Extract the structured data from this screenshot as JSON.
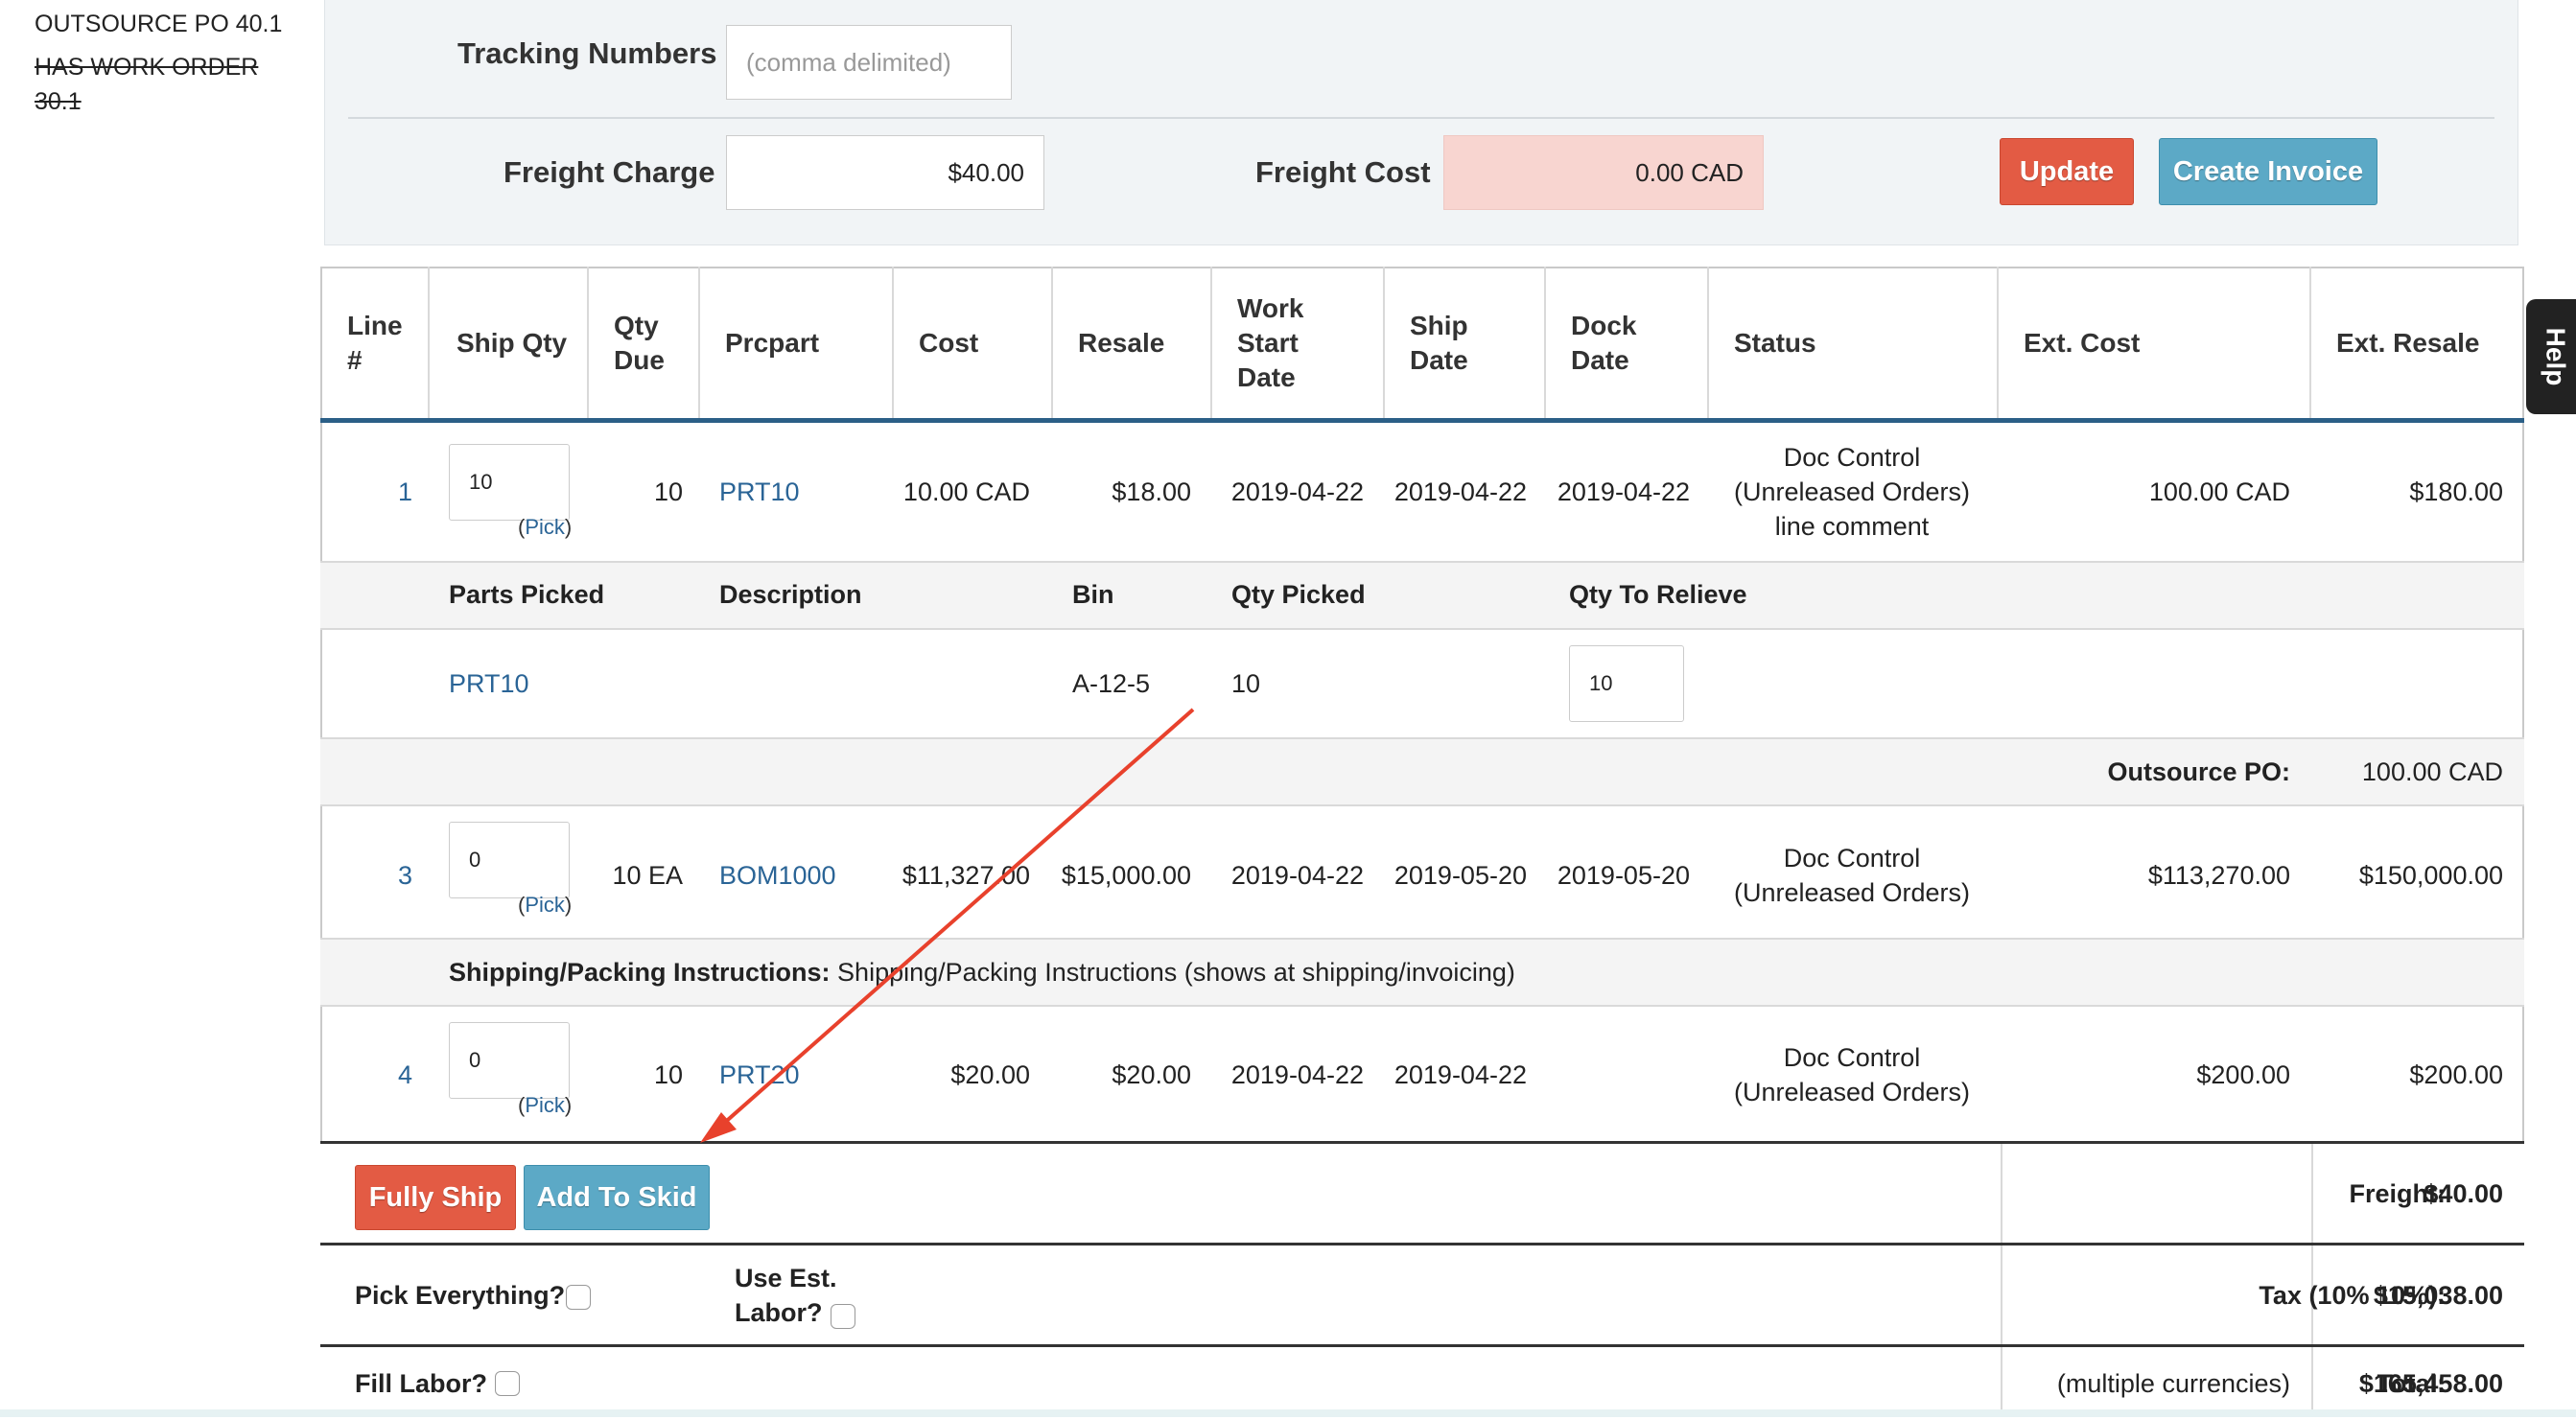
{
  "sidebar": {
    "po_label": "OUTSOURCE PO 40.1",
    "work_order_label": "HAS WORK ORDER 30.1"
  },
  "top_panel": {
    "tracking_label": "Tracking Numbers",
    "tracking_placeholder": "(comma delimited)",
    "freight_charge_label": "Freight Charge",
    "freight_charge_value": "$40.00",
    "freight_cost_label": "Freight Cost",
    "freight_cost_value": "0.00 CAD",
    "update_label": "Update",
    "create_invoice_label": "Create Invoice"
  },
  "help_label": "Help",
  "columns": {
    "line": "Line #",
    "ship_qty": "Ship Qty",
    "qty_due": "Qty Due",
    "prcpart": "Prcpart",
    "cost": "Cost",
    "resale": "Resale",
    "work_start": "Work Start Date",
    "ship_date": "Ship Date",
    "dock_date": "Dock Date",
    "status": "Status",
    "ext_cost": "Ext. Cost",
    "ext_resale": "Ext. Resale"
  },
  "pick_label": "Pick",
  "rows": [
    {
      "line": "1",
      "ship_qty": "10",
      "qty_due": "10",
      "prcpart": "PRT10",
      "cost": "10.00 CAD",
      "resale": "$18.00",
      "work_start": "2019-04-22",
      "ship_date": "2019-04-22",
      "dock_date": "2019-04-22",
      "status_1": "Doc Control",
      "status_2": "(Unreleased Orders)",
      "status_3": "line comment",
      "ext_cost": "100.00 CAD",
      "ext_resale": "$180.00"
    },
    {
      "line": "3",
      "ship_qty": "0",
      "qty_due": "10 EA",
      "prcpart": "BOM1000",
      "cost": "$11,327.00",
      "resale": "$15,000.00",
      "work_start": "2019-04-22",
      "ship_date": "2019-05-20",
      "dock_date": "2019-05-20",
      "status_1": "Doc Control",
      "status_2": "(Unreleased Orders)",
      "ext_cost": "$113,270.00",
      "ext_resale": "$150,000.00"
    },
    {
      "line": "4",
      "ship_qty": "0",
      "qty_due": "10",
      "prcpart": "PRT20",
      "cost": "$20.00",
      "resale": "$20.00",
      "work_start": "2019-04-22",
      "ship_date": "2019-04-22",
      "dock_date": "",
      "status_1": "Doc Control",
      "status_2": "(Unreleased Orders)",
      "ext_cost": "$200.00",
      "ext_resale": "$200.00"
    }
  ],
  "picked": {
    "headers": {
      "parts": "Parts Picked",
      "description": "Description",
      "bin": "Bin",
      "qty_picked": "Qty Picked",
      "qty_relieve": "Qty To Relieve"
    },
    "part": "PRT10",
    "description": "",
    "bin": "A-12-5",
    "qty_picked": "10",
    "qty_relieve": "10"
  },
  "outsource": {
    "label": "Outsource PO:",
    "value": "100.00 CAD"
  },
  "shipping": {
    "label": "Shipping/Packing Instructions:",
    "text": "Shipping/Packing Instructions (shows at shipping/invoicing)"
  },
  "footer": {
    "fully_ship_label": "Fully Ship",
    "add_to_skid_label": "Add To Skid",
    "freight_label": "Freight:",
    "freight_value": "$40.00",
    "pick_everything_label": "Pick Everything?",
    "use_est_label_1": "Use Est.",
    "use_est_label_2": "Labor?",
    "tax_label": "Tax (10% 10%):",
    "tax_value": "$15,038.00",
    "fill_labor_label": "Fill Labor?",
    "total_label": "Total:",
    "total_currency": "(multiple currencies)",
    "total_value": "$165,458.00"
  },
  "colors": {
    "accent_red": "#e35b44",
    "accent_blue": "#5ca9c6",
    "header_rule": "#2b5f87",
    "annotation_arrow": "#e8412c"
  }
}
